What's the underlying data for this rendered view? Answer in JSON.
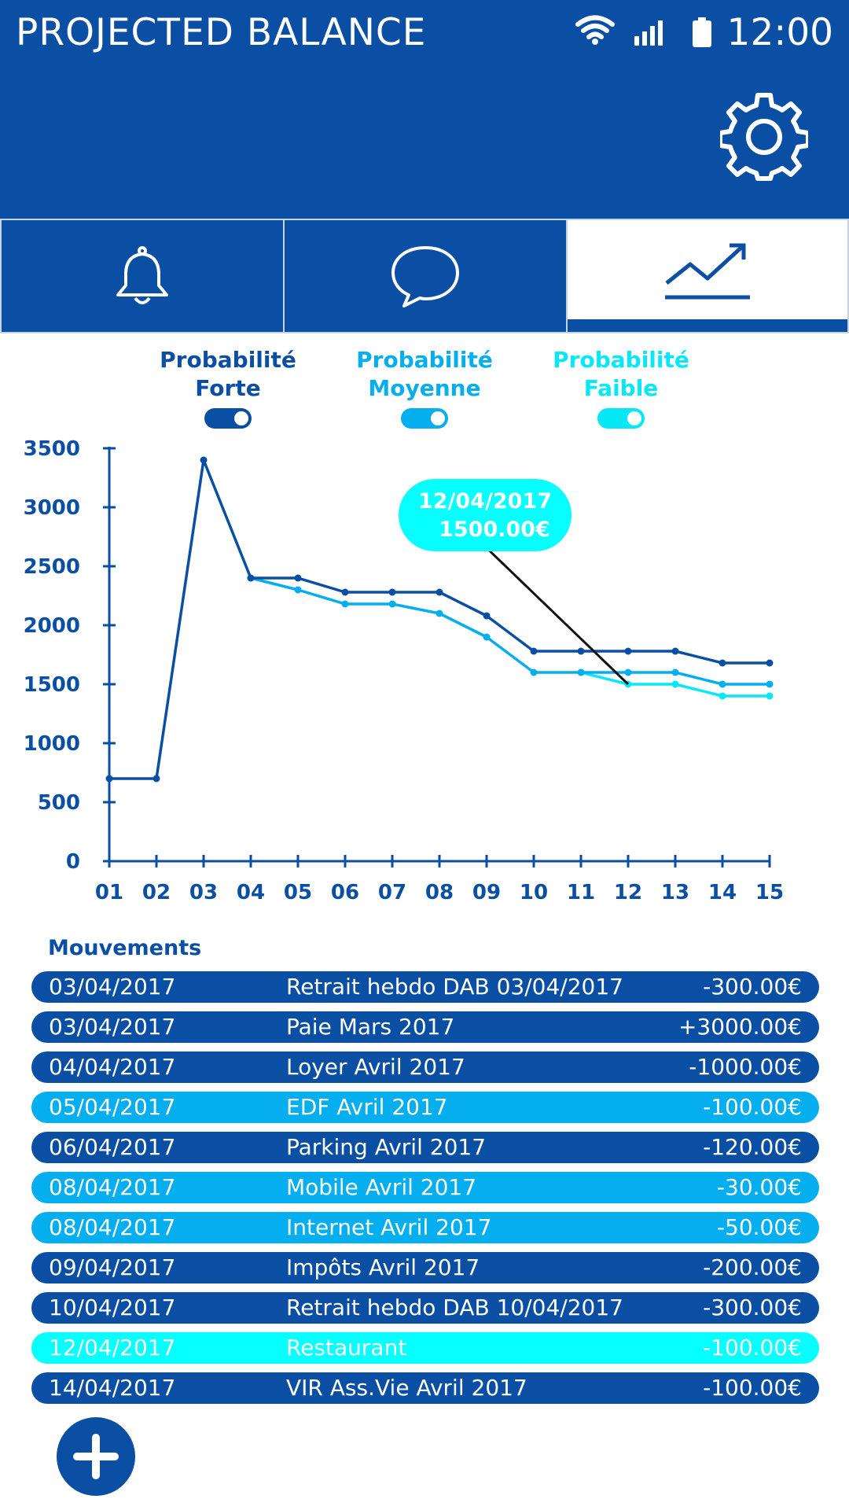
{
  "header": {
    "title": "PROJECTED BALANCE",
    "time": "12:00"
  },
  "status_icons": [
    "wifi-icon",
    "signal-icon",
    "battery-icon"
  ],
  "tabs": [
    {
      "name": "notifications",
      "icon": "bell-icon",
      "active": false
    },
    {
      "name": "messages",
      "icon": "chat-bubble-icon",
      "active": false
    },
    {
      "name": "projection",
      "icon": "trend-up-icon",
      "active": true
    }
  ],
  "legend": [
    {
      "line1": "Probabilité",
      "line2": "Forte",
      "color": "#0a4fa3",
      "on": true
    },
    {
      "line1": "Probabilité",
      "line2": "Moyenne",
      "color": "#05aeee",
      "on": true
    },
    {
      "line1": "Probabilité",
      "line2": "Faible",
      "color": "#06e8f5",
      "on": true
    }
  ],
  "tooltip": {
    "date": "12/04/2017",
    "amount": "1500.00€"
  },
  "chart_data": {
    "type": "line",
    "x": [
      "01",
      "02",
      "03",
      "04",
      "05",
      "06",
      "07",
      "08",
      "09",
      "10",
      "11",
      "12",
      "13",
      "14",
      "15"
    ],
    "ylim": [
      0,
      3500
    ],
    "yticks": [
      0,
      500,
      1000,
      1500,
      2000,
      2500,
      3000,
      3500
    ],
    "series": [
      {
        "name": "Probabilité Forte",
        "color": "#0a4fa3",
        "values": [
          700,
          700,
          3400,
          2400,
          2400,
          2280,
          2280,
          2280,
          2080,
          1780,
          1780,
          1780,
          1780,
          1680,
          1680
        ]
      },
      {
        "name": "Probabilité Moyenne",
        "color": "#05aeee",
        "values": [
          null,
          null,
          null,
          2400,
          2300,
          2180,
          2180,
          2100,
          1900,
          1600,
          1600,
          1600,
          1600,
          1500,
          1500
        ]
      },
      {
        "name": "Probabilité Faible",
        "color": "#06e8f5",
        "values": [
          null,
          null,
          null,
          null,
          null,
          null,
          null,
          null,
          null,
          null,
          1600,
          1500,
          1500,
          1400,
          1400
        ]
      }
    ],
    "highlight": {
      "x": "12",
      "y": 1500
    }
  },
  "movements": {
    "title": "Mouvements",
    "rows": [
      {
        "date": "03/04/2017",
        "label": "Retrait hebdo DAB 03/04/2017",
        "amount": "-300.00€",
        "color": "#0a4fa3"
      },
      {
        "date": "03/04/2017",
        "label": "Paie Mars 2017",
        "amount": "+3000.00€",
        "color": "#0a4fa3"
      },
      {
        "date": "04/04/2017",
        "label": "Loyer Avril 2017",
        "amount": "-1000.00€",
        "color": "#0a4fa3"
      },
      {
        "date": "05/04/2017",
        "label": "EDF Avril 2017",
        "amount": "-100.00€",
        "color": "#05aeee"
      },
      {
        "date": "06/04/2017",
        "label": "Parking Avril 2017",
        "amount": "-120.00€",
        "color": "#0a4fa3"
      },
      {
        "date": "08/04/2017",
        "label": "Mobile Avril 2017",
        "amount": "-30.00€",
        "color": "#05aeee"
      },
      {
        "date": "08/04/2017",
        "label": "Internet Avril 2017",
        "amount": "-50.00€",
        "color": "#05aeee"
      },
      {
        "date": "09/04/2017",
        "label": "Impôts Avril 2017",
        "amount": "-200.00€",
        "color": "#0a4fa3"
      },
      {
        "date": "10/04/2017",
        "label": "Retrait hebdo DAB 10/04/2017",
        "amount": "-300.00€",
        "color": "#0a4fa3"
      },
      {
        "date": "12/04/2017",
        "label": "Restaurant",
        "amount": "-100.00€",
        "color": "#06ffff"
      },
      {
        "date": "14/04/2017",
        "label": "VIR Ass.Vie Avril 2017",
        "amount": "-100.00€",
        "color": "#0a4fa3"
      }
    ]
  },
  "fab": {
    "icon": "plus-icon"
  }
}
